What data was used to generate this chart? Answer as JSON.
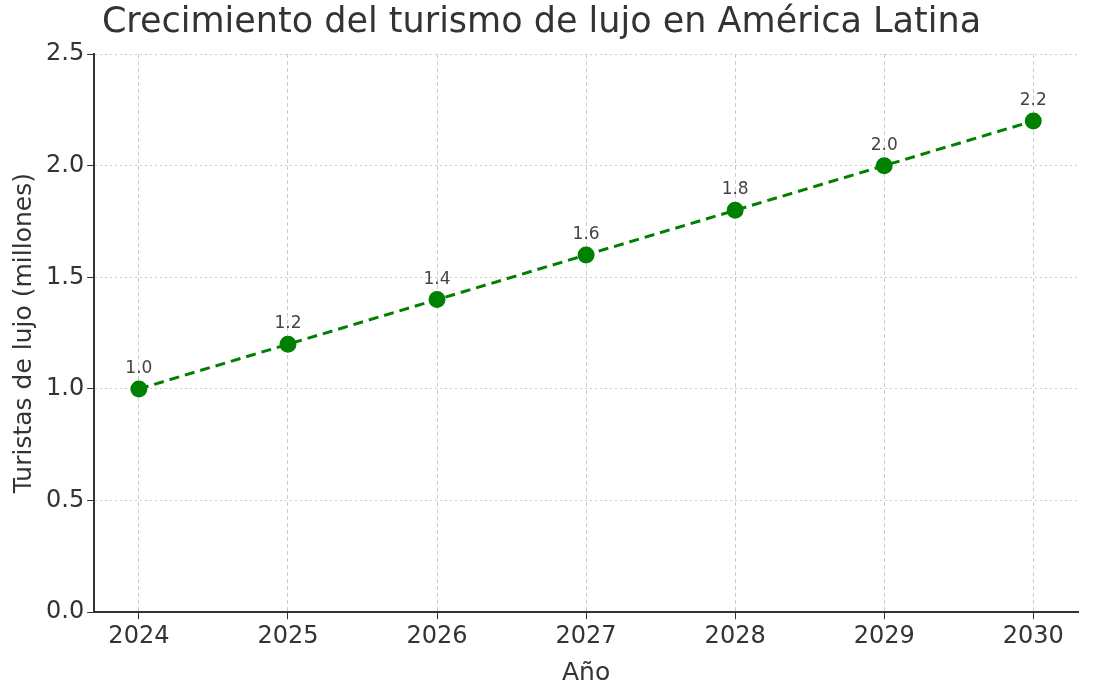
{
  "chart_data": {
    "type": "line",
    "title": "Crecimiento del turismo de lujo en América Latina",
    "xlabel": "Año",
    "ylabel": "Turistas de lujo (millones)",
    "x": [
      2024,
      2025,
      2026,
      2027,
      2028,
      2029,
      2030
    ],
    "series": [
      {
        "color": "#008000",
        "values": [
          1.0,
          1.2,
          1.4,
          1.6,
          1.8,
          2.0,
          2.2
        ],
        "value_labels": [
          "1.0",
          "1.2",
          "1.4",
          "1.6",
          "1.8",
          "2.0",
          "2.2"
        ]
      }
    ],
    "xlim": [
      2023.7,
      2030.3
    ],
    "xticks": [
      2024,
      2025,
      2026,
      2027,
      2028,
      2029,
      2030
    ],
    "ylim": [
      0,
      2.5
    ],
    "yticks": [
      {
        "value": 0,
        "label": "0.0"
      },
      {
        "value": 0.5,
        "label": "0.5"
      },
      {
        "value": 1,
        "label": "1.0"
      },
      {
        "value": 1.5,
        "label": "1.5"
      },
      {
        "value": 2,
        "label": "2.0"
      },
      {
        "value": 2.5,
        "label": "2.5"
      }
    ],
    "grid": true,
    "legend": false,
    "marker": "circle",
    "line_style": "dashed"
  }
}
